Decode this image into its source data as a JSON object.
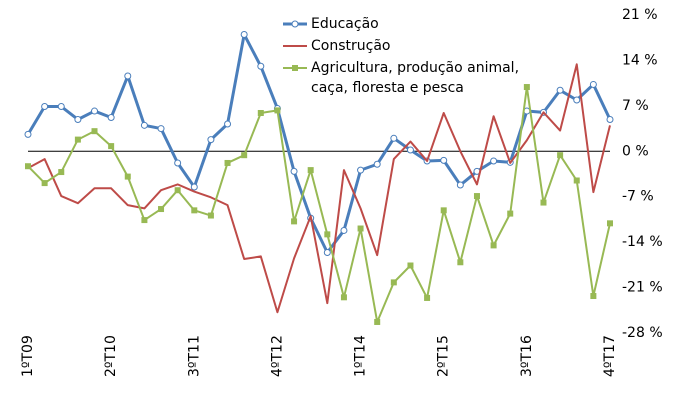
{
  "chart_data": {
    "type": "line",
    "categories": [
      "1ºT09",
      null,
      null,
      null,
      null,
      "2ºT10",
      null,
      null,
      null,
      null,
      "3ºT11",
      null,
      null,
      null,
      null,
      "4ºT12",
      null,
      null,
      null,
      null,
      "1ºT14",
      null,
      null,
      null,
      null,
      "2ºT15",
      null,
      null,
      null,
      null,
      "3ºT16",
      null,
      null,
      null,
      null,
      "4ºT17"
    ],
    "series": [
      {
        "name": "Educação",
        "color": "#4a7ebb",
        "marker": "circle",
        "values": [
          2.6,
          6.9,
          6.9,
          4.9,
          6.2,
          5.2,
          11.6,
          4.0,
          3.5,
          -1.8,
          -5.5,
          1.8,
          4.2,
          18.0,
          13.1,
          6.6,
          -3.1,
          -10.3,
          -15.6,
          -12.2,
          -2.9,
          -2.0,
          2.0,
          0.2,
          -1.5,
          -1.4,
          -5.2,
          -3.1,
          -1.5,
          -1.7,
          6.2,
          6.0,
          9.4,
          7.9,
          10.3,
          4.9
        ]
      },
      {
        "name": "Construção",
        "color": "#be4b48",
        "marker": "none",
        "values": [
          -2.6,
          -1.2,
          -6.9,
          -8.0,
          -5.7,
          -5.7,
          -8.3,
          -8.8,
          -6.0,
          -5.1,
          -6.2,
          -7.1,
          -8.3,
          -16.6,
          -16.2,
          -24.8,
          -16.5,
          -10.0,
          -23.4,
          -2.9,
          -8.8,
          -16.0,
          -1.2,
          1.5,
          -1.5,
          5.9,
          0,
          -5.1,
          5.4,
          -1.8,
          1.7,
          6.0,
          3.2,
          13.4,
          -6.3,
          4.0
        ]
      },
      {
        "name": "Agricultura, produção animal, caça, floresta e pesca",
        "color": "#98b954",
        "marker": "square",
        "values": [
          -2.3,
          -4.9,
          -3.2,
          1.8,
          3.1,
          0.8,
          -3.9,
          -10.6,
          -8.9,
          -6.0,
          -9.1,
          -9.9,
          -1.8,
          -0.6,
          5.9,
          6.3,
          -10.8,
          -2.9,
          -12.8,
          -22.5,
          -11.9,
          -26.3,
          -20.2,
          -17.6,
          -22.6,
          -9.1,
          -17.1,
          -6.9,
          -14.5,
          -9.6,
          9.9,
          -7.9,
          -0.6,
          -4.5,
          -22.3,
          -11.1
        ]
      }
    ],
    "ylim": [
      -28,
      21
    ],
    "yticks": [
      {
        "value": 21,
        "label": "21 %"
      },
      {
        "value": 14,
        "label": "14 %"
      },
      {
        "value": 7,
        "label": "7 %"
      },
      {
        "value": 0,
        "label": "0 %"
      },
      {
        "value": -7,
        "label": "-7 %"
      },
      {
        "value": -14,
        "label": "-14 %"
      },
      {
        "value": -21,
        "label": "-21 %"
      },
      {
        "value": -28,
        "label": "-28 %"
      }
    ],
    "y_axis_side": "right",
    "grid": false,
    "legend": "top"
  }
}
